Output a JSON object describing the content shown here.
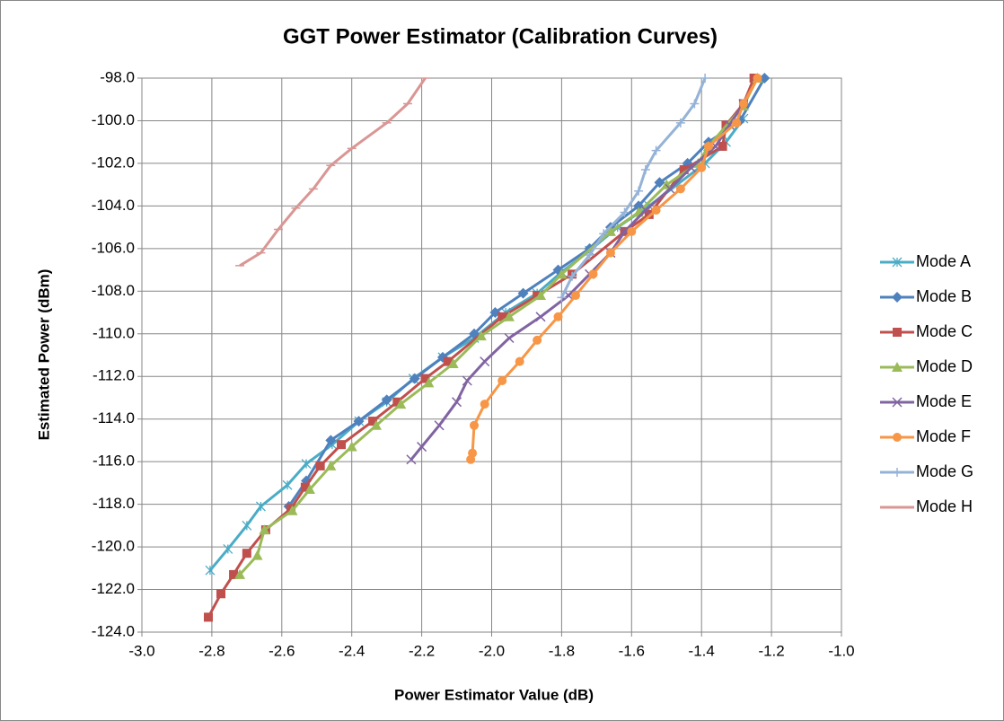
{
  "chart_data": {
    "type": "scatter",
    "title": "GGT Power Estimator (Calibration Curves)",
    "x_label": "Power Estimator Value  (dB)",
    "y_label": "Estimated Power (dBm)",
    "xlim": [
      -3.0,
      -1.0
    ],
    "xticks": [
      {
        "value": -3.0,
        "label": "-3.0"
      },
      {
        "value": -2.8,
        "label": "-2.8"
      },
      {
        "value": -2.6,
        "label": "-2.6"
      },
      {
        "value": -2.4,
        "label": "-2.4"
      },
      {
        "value": -2.2,
        "label": "-2.2"
      },
      {
        "value": -2.0,
        "label": "-2.0"
      },
      {
        "value": -1.8,
        "label": "-1.8"
      },
      {
        "value": -1.6,
        "label": "-1.6"
      },
      {
        "value": -1.4,
        "label": "-1.4"
      },
      {
        "value": -1.2,
        "label": "-1.2"
      },
      {
        "value": -1.0,
        "label": "-1.0"
      }
    ],
    "ylim": [
      -124.0,
      -98.0
    ],
    "yticks": [
      {
        "value": -98.0,
        "label": "-98.0"
      },
      {
        "value": -100.0,
        "label": "-100.0"
      },
      {
        "value": -102.0,
        "label": "-102.0"
      },
      {
        "value": -104.0,
        "label": "-104.0"
      },
      {
        "value": -106.0,
        "label": "-106.0"
      },
      {
        "value": -108.0,
        "label": "-108.0"
      },
      {
        "value": -110.0,
        "label": "-110.0"
      },
      {
        "value": -112.0,
        "label": "-112.0"
      },
      {
        "value": -114.0,
        "label": "-114.0"
      },
      {
        "value": -116.0,
        "label": "-116.0"
      },
      {
        "value": -118.0,
        "label": "-118.0"
      },
      {
        "value": -120.0,
        "label": "-120.0"
      },
      {
        "value": -122.0,
        "label": "-122.0"
      },
      {
        "value": -124.0,
        "label": "-124.0"
      }
    ],
    "grid": true,
    "legend": "right",
    "series": [
      {
        "name": "Mode A",
        "color": "#4bacc6",
        "marker": "asterisk",
        "x": [
          -2.805,
          -2.754,
          -2.7,
          -2.66,
          -2.584,
          -2.53,
          -2.456,
          -2.379,
          -2.3,
          -2.224,
          -2.14,
          -2.05,
          -1.96,
          -1.87,
          -1.8,
          -1.72,
          -1.64,
          -1.55,
          -1.47,
          -1.39,
          -1.33,
          -1.28
        ],
        "values": [
          -121.1,
          -120.1,
          -119.0,
          -118.1,
          -117.1,
          -116.1,
          -115.2,
          -114.1,
          -113.2,
          -112.1,
          -111.1,
          -110.2,
          -109.0,
          -108.1,
          -107.1,
          -106.1,
          -105.0,
          -104.0,
          -103.0,
          -102.0,
          -101.0,
          -99.9
        ]
      },
      {
        "name": "Mode B",
        "color": "#4f81bd",
        "marker": "diamond",
        "x": [
          -2.58,
          -2.53,
          -2.46,
          -2.38,
          -2.3,
          -2.22,
          -2.14,
          -2.05,
          -1.99,
          -1.91,
          -1.81,
          -1.72,
          -1.66,
          -1.58,
          -1.52,
          -1.44,
          -1.38,
          -1.29,
          -1.22
        ],
        "values": [
          -118.1,
          -116.9,
          -115.0,
          -114.1,
          -113.1,
          -112.1,
          -111.1,
          -110.0,
          -109.0,
          -108.1,
          -107.0,
          -106.0,
          -105.0,
          -104.0,
          -102.9,
          -102.0,
          -101.0,
          -100.0,
          -98.0
        ]
      },
      {
        "name": "Mode C",
        "color": "#c0504d",
        "marker": "square",
        "x": [
          -2.81,
          -2.774,
          -2.738,
          -2.7,
          -2.646,
          -2.574,
          -2.533,
          -2.49,
          -2.43,
          -2.34,
          -2.27,
          -2.19,
          -2.125,
          -1.97,
          -1.87,
          -1.77,
          -1.62,
          -1.55,
          -1.45,
          -1.34,
          -1.33,
          -1.28,
          -1.25
        ],
        "values": [
          -123.3,
          -122.2,
          -121.3,
          -120.3,
          -119.2,
          -118.2,
          -117.2,
          -116.2,
          -115.2,
          -114.1,
          -113.2,
          -112.1,
          -111.3,
          -109.2,
          -108.2,
          -107.2,
          -105.2,
          -104.4,
          -102.3,
          -101.2,
          -100.2,
          -99.2,
          -98.0
        ]
      },
      {
        "name": "Mode D",
        "color": "#9bbb59",
        "marker": "triangle",
        "x": [
          -2.72,
          -2.67,
          -2.65,
          -2.57,
          -2.52,
          -2.46,
          -2.4,
          -2.33,
          -2.26,
          -2.18,
          -2.11,
          -2.03,
          -1.95,
          -1.86,
          -1.8,
          -1.66,
          -1.58,
          -1.5,
          -1.41,
          -1.38,
          -1.28,
          -1.24
        ],
        "values": [
          -121.3,
          -120.4,
          -119.2,
          -118.3,
          -117.3,
          -116.2,
          -115.3,
          -114.3,
          -113.3,
          -112.3,
          -111.4,
          -110.1,
          -109.2,
          -108.2,
          -107.2,
          -105.2,
          -104.3,
          -103.0,
          -102.0,
          -101.2,
          -99.3,
          -98.0
        ]
      },
      {
        "name": "Mode E",
        "color": "#8064a2",
        "marker": "x",
        "x": [
          -2.23,
          -2.2,
          -2.15,
          -2.1,
          -2.07,
          -2.02,
          -1.95,
          -1.86,
          -1.78,
          -1.72,
          -1.66,
          -1.62,
          -1.56,
          -1.49,
          -1.43,
          -1.36,
          -1.32,
          -1.28
        ],
        "values": [
          -115.9,
          -115.3,
          -114.3,
          -113.2,
          -112.2,
          -111.3,
          -110.2,
          -109.2,
          -108.2,
          -107.2,
          -106.2,
          -105.2,
          -104.2,
          -103.2,
          -102.2,
          -101.2,
          -100.2,
          -99.2
        ]
      },
      {
        "name": "Mode F",
        "color": "#f79646",
        "marker": "circle",
        "x": [
          -2.06,
          -2.055,
          -2.05,
          -2.02,
          -1.97,
          -1.92,
          -1.87,
          -1.81,
          -1.76,
          -1.71,
          -1.66,
          -1.6,
          -1.53,
          -1.46,
          -1.4,
          -1.38,
          -1.3,
          -1.28,
          -1.24
        ],
        "values": [
          -115.9,
          -115.6,
          -114.3,
          -113.3,
          -112.2,
          -111.3,
          -110.3,
          -109.2,
          -108.2,
          -107.2,
          -106.2,
          -105.2,
          -104.2,
          -103.2,
          -102.2,
          -101.2,
          -100.1,
          -99.2,
          -98.0
        ]
      },
      {
        "name": "Mode G",
        "color": "#95b3d7",
        "marker": "plus",
        "x": [
          -1.8,
          -1.77,
          -1.72,
          -1.68,
          -1.62,
          -1.58,
          -1.56,
          -1.53,
          -1.46,
          -1.42,
          -1.39
        ],
        "values": [
          -108.3,
          -107.3,
          -106.3,
          -105.3,
          -104.3,
          -103.3,
          -102.3,
          -101.4,
          -100.1,
          -99.2,
          -98.0
        ]
      },
      {
        "name": "Mode H",
        "color": "#d99694",
        "marker": "dash",
        "x": [
          -2.72,
          -2.66,
          -2.61,
          -2.56,
          -2.51,
          -2.46,
          -2.4,
          -2.3,
          -2.24,
          -2.19
        ],
        "values": [
          -106.8,
          -106.2,
          -105.1,
          -104.1,
          -103.2,
          -102.1,
          -101.3,
          -100.1,
          -99.2,
          -98.0
        ]
      }
    ]
  }
}
